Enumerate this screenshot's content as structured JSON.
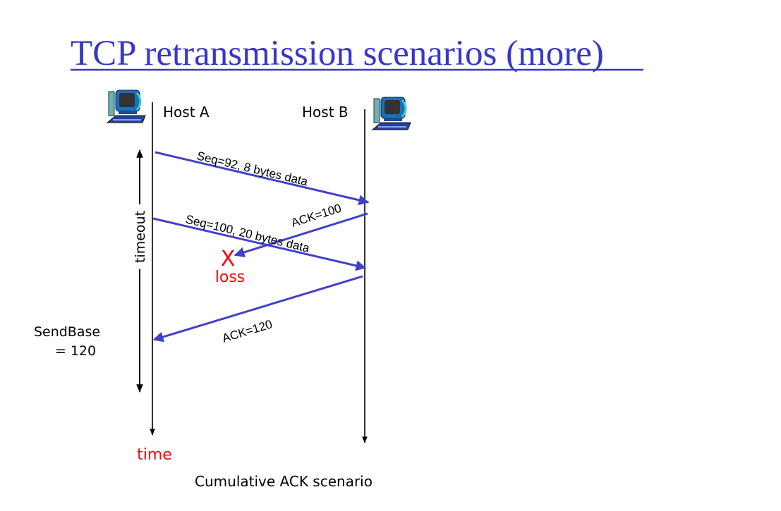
{
  "title": "TCP retransmission scenarios (more)",
  "hosts": {
    "a": "Host A",
    "b": "Host B"
  },
  "messages": {
    "seg1": "Seq=92, 8 bytes data",
    "ack1": "ACK=100",
    "seg2": "Seq=100, 20 bytes data",
    "ack2": "ACK=120"
  },
  "loss": {
    "mark": "X",
    "label": "loss"
  },
  "timeout_label": "timeout",
  "sendbase": {
    "line1": "SendBase",
    "line2": "= 120"
  },
  "time_label": "time",
  "caption": "Cumulative ACK scenario",
  "colors": {
    "title": "#3737c8",
    "arrow": "#4040d0",
    "loss": "#ff0000"
  }
}
